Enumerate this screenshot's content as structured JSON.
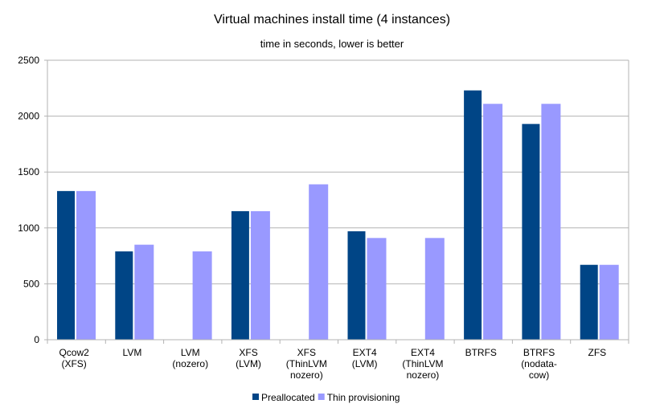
{
  "chart_data": {
    "type": "bar",
    "title": "Virtual machines install time (4 instances)",
    "subtitle": "time in seconds, lower is better",
    "xlabel": "",
    "ylabel": "",
    "ylim": [
      0,
      2500
    ],
    "yticks": [
      0,
      500,
      1000,
      1500,
      2000,
      2500
    ],
    "grid": true,
    "legend_position": "bottom",
    "categories": [
      [
        "Qcow2",
        "(XFS)"
      ],
      [
        "LVM"
      ],
      [
        "LVM",
        "(nozero)"
      ],
      [
        "XFS",
        "(LVM)"
      ],
      [
        "XFS",
        "(ThinLVM",
        "nozero)"
      ],
      [
        "EXT4",
        "(LVM)"
      ],
      [
        "EXT4",
        "(ThinLVM",
        "nozero)"
      ],
      [
        "BTRFS"
      ],
      [
        "BTRFS",
        "(nodata-",
        "cow)"
      ],
      [
        "ZFS"
      ]
    ],
    "series": [
      {
        "name": "Preallocated",
        "color": "#004586",
        "values": [
          1330,
          790,
          0,
          1150,
          0,
          970,
          0,
          2230,
          1930,
          670
        ]
      },
      {
        "name": "Thin provisioning",
        "color": "#9999ff",
        "values": [
          1330,
          850,
          790,
          1150,
          1390,
          910,
          910,
          2110,
          2110,
          670
        ]
      }
    ]
  }
}
